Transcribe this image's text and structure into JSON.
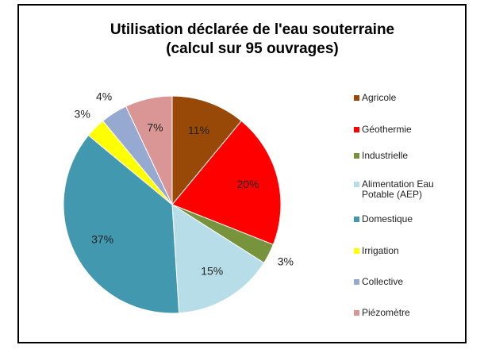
{
  "chart_data": {
    "type": "pie",
    "title": "Utilisation déclarée de l'eau souterraine",
    "subtitle": "(calcul sur 95 ouvrages)",
    "categories": [
      "Agricole",
      "Géothermie",
      "Industrielle",
      "Alimentation Eau Potable (AEP)",
      "Domestique",
      "Irrigation",
      "Collective",
      "Piézomètre"
    ],
    "values": [
      11,
      20,
      3,
      15,
      37,
      3,
      4,
      7
    ],
    "value_labels": [
      "11%",
      "20%",
      "3%",
      "15%",
      "37%",
      "3%",
      "4%",
      "7%"
    ],
    "colors": [
      "#984807",
      "#ff0000",
      "#77933c",
      "#b7dee8",
      "#4198af",
      "#ffff00",
      "#95a9d1",
      "#d99694"
    ],
    "legend": "right"
  }
}
